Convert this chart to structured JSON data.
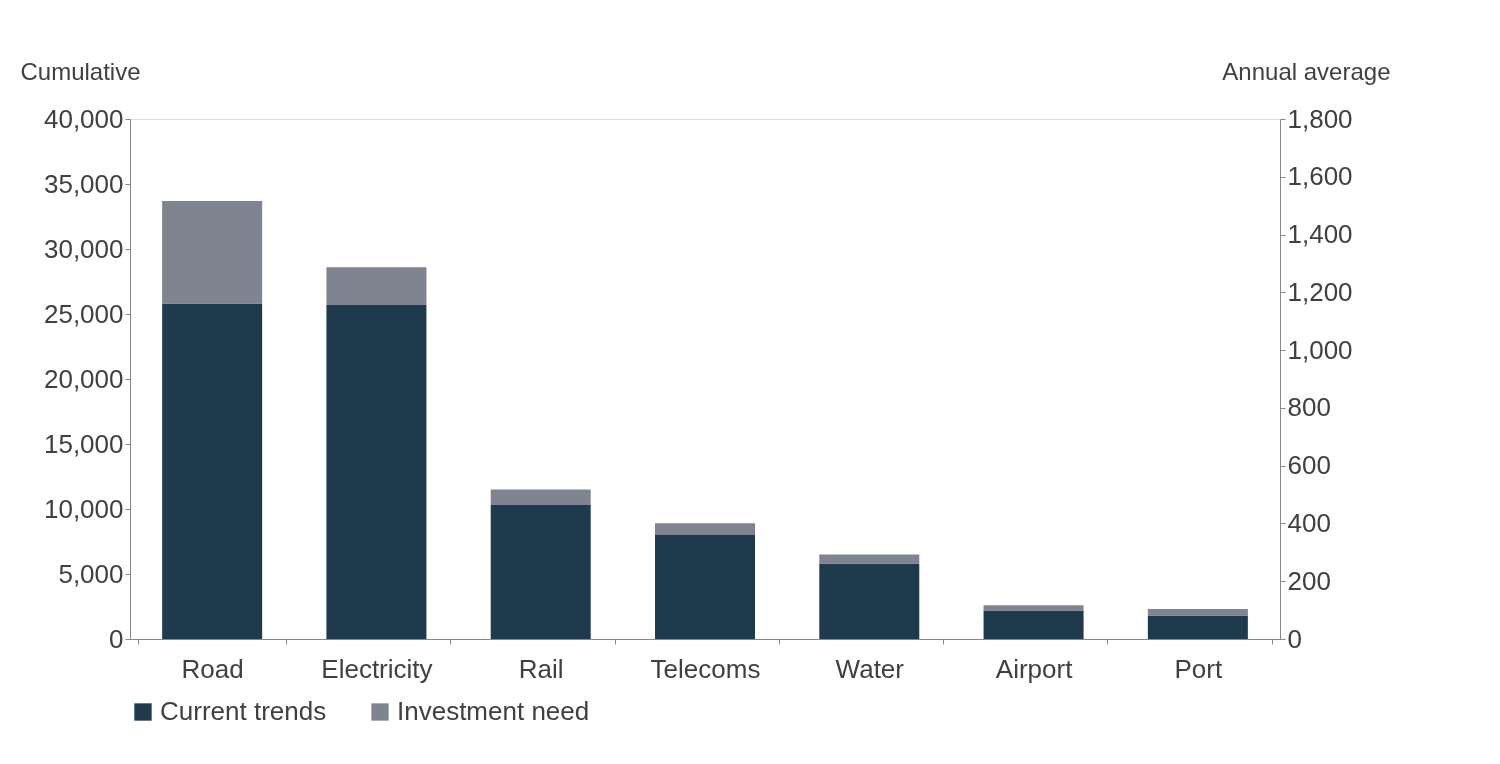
{
  "chart_data": {
    "type": "bar",
    "stacked": true,
    "ylabel": "Cumulative",
    "y2label": "Annual average",
    "categories": [
      "Road",
      "Electricity",
      "Rail",
      "Telecoms",
      "Water",
      "Airport",
      "Port"
    ],
    "series": [
      {
        "name": "Current trends",
        "color": "#1f3a4d",
        "values": [
          25800,
          25700,
          10300,
          8000,
          5800,
          2200,
          1800
        ]
      },
      {
        "name": "Investment need",
        "color": "#7f8490",
        "values": [
          7900,
          2900,
          1200,
          900,
          700,
          400,
          500
        ]
      }
    ],
    "ylim": [
      0,
      40000
    ],
    "yticks": [
      0,
      {
        "value": 5000,
        "label": "5,000"
      },
      {
        "value": 10000,
        "label": "10,000"
      },
      {
        "value": 15000,
        "label": "15,000"
      },
      {
        "value": 20000,
        "label": "20,000"
      },
      {
        "value": 25000,
        "label": "25,000"
      },
      {
        "value": 30000,
        "label": "30,000"
      },
      {
        "value": 35000,
        "label": "35,000"
      },
      {
        "value": 40000,
        "label": "40,000"
      }
    ],
    "y2lim": [
      0,
      1800
    ],
    "y2ticks": [
      0,
      200,
      400,
      600,
      800,
      {
        "value": 1000,
        "label": "1,000"
      },
      {
        "value": 1200,
        "label": "1,200"
      },
      {
        "value": 1400,
        "label": "1,400"
      },
      {
        "value": 1600,
        "label": "1,600"
      },
      {
        "value": 1800,
        "label": "1,800"
      }
    ],
    "grid": false,
    "legend": "bottom left"
  }
}
